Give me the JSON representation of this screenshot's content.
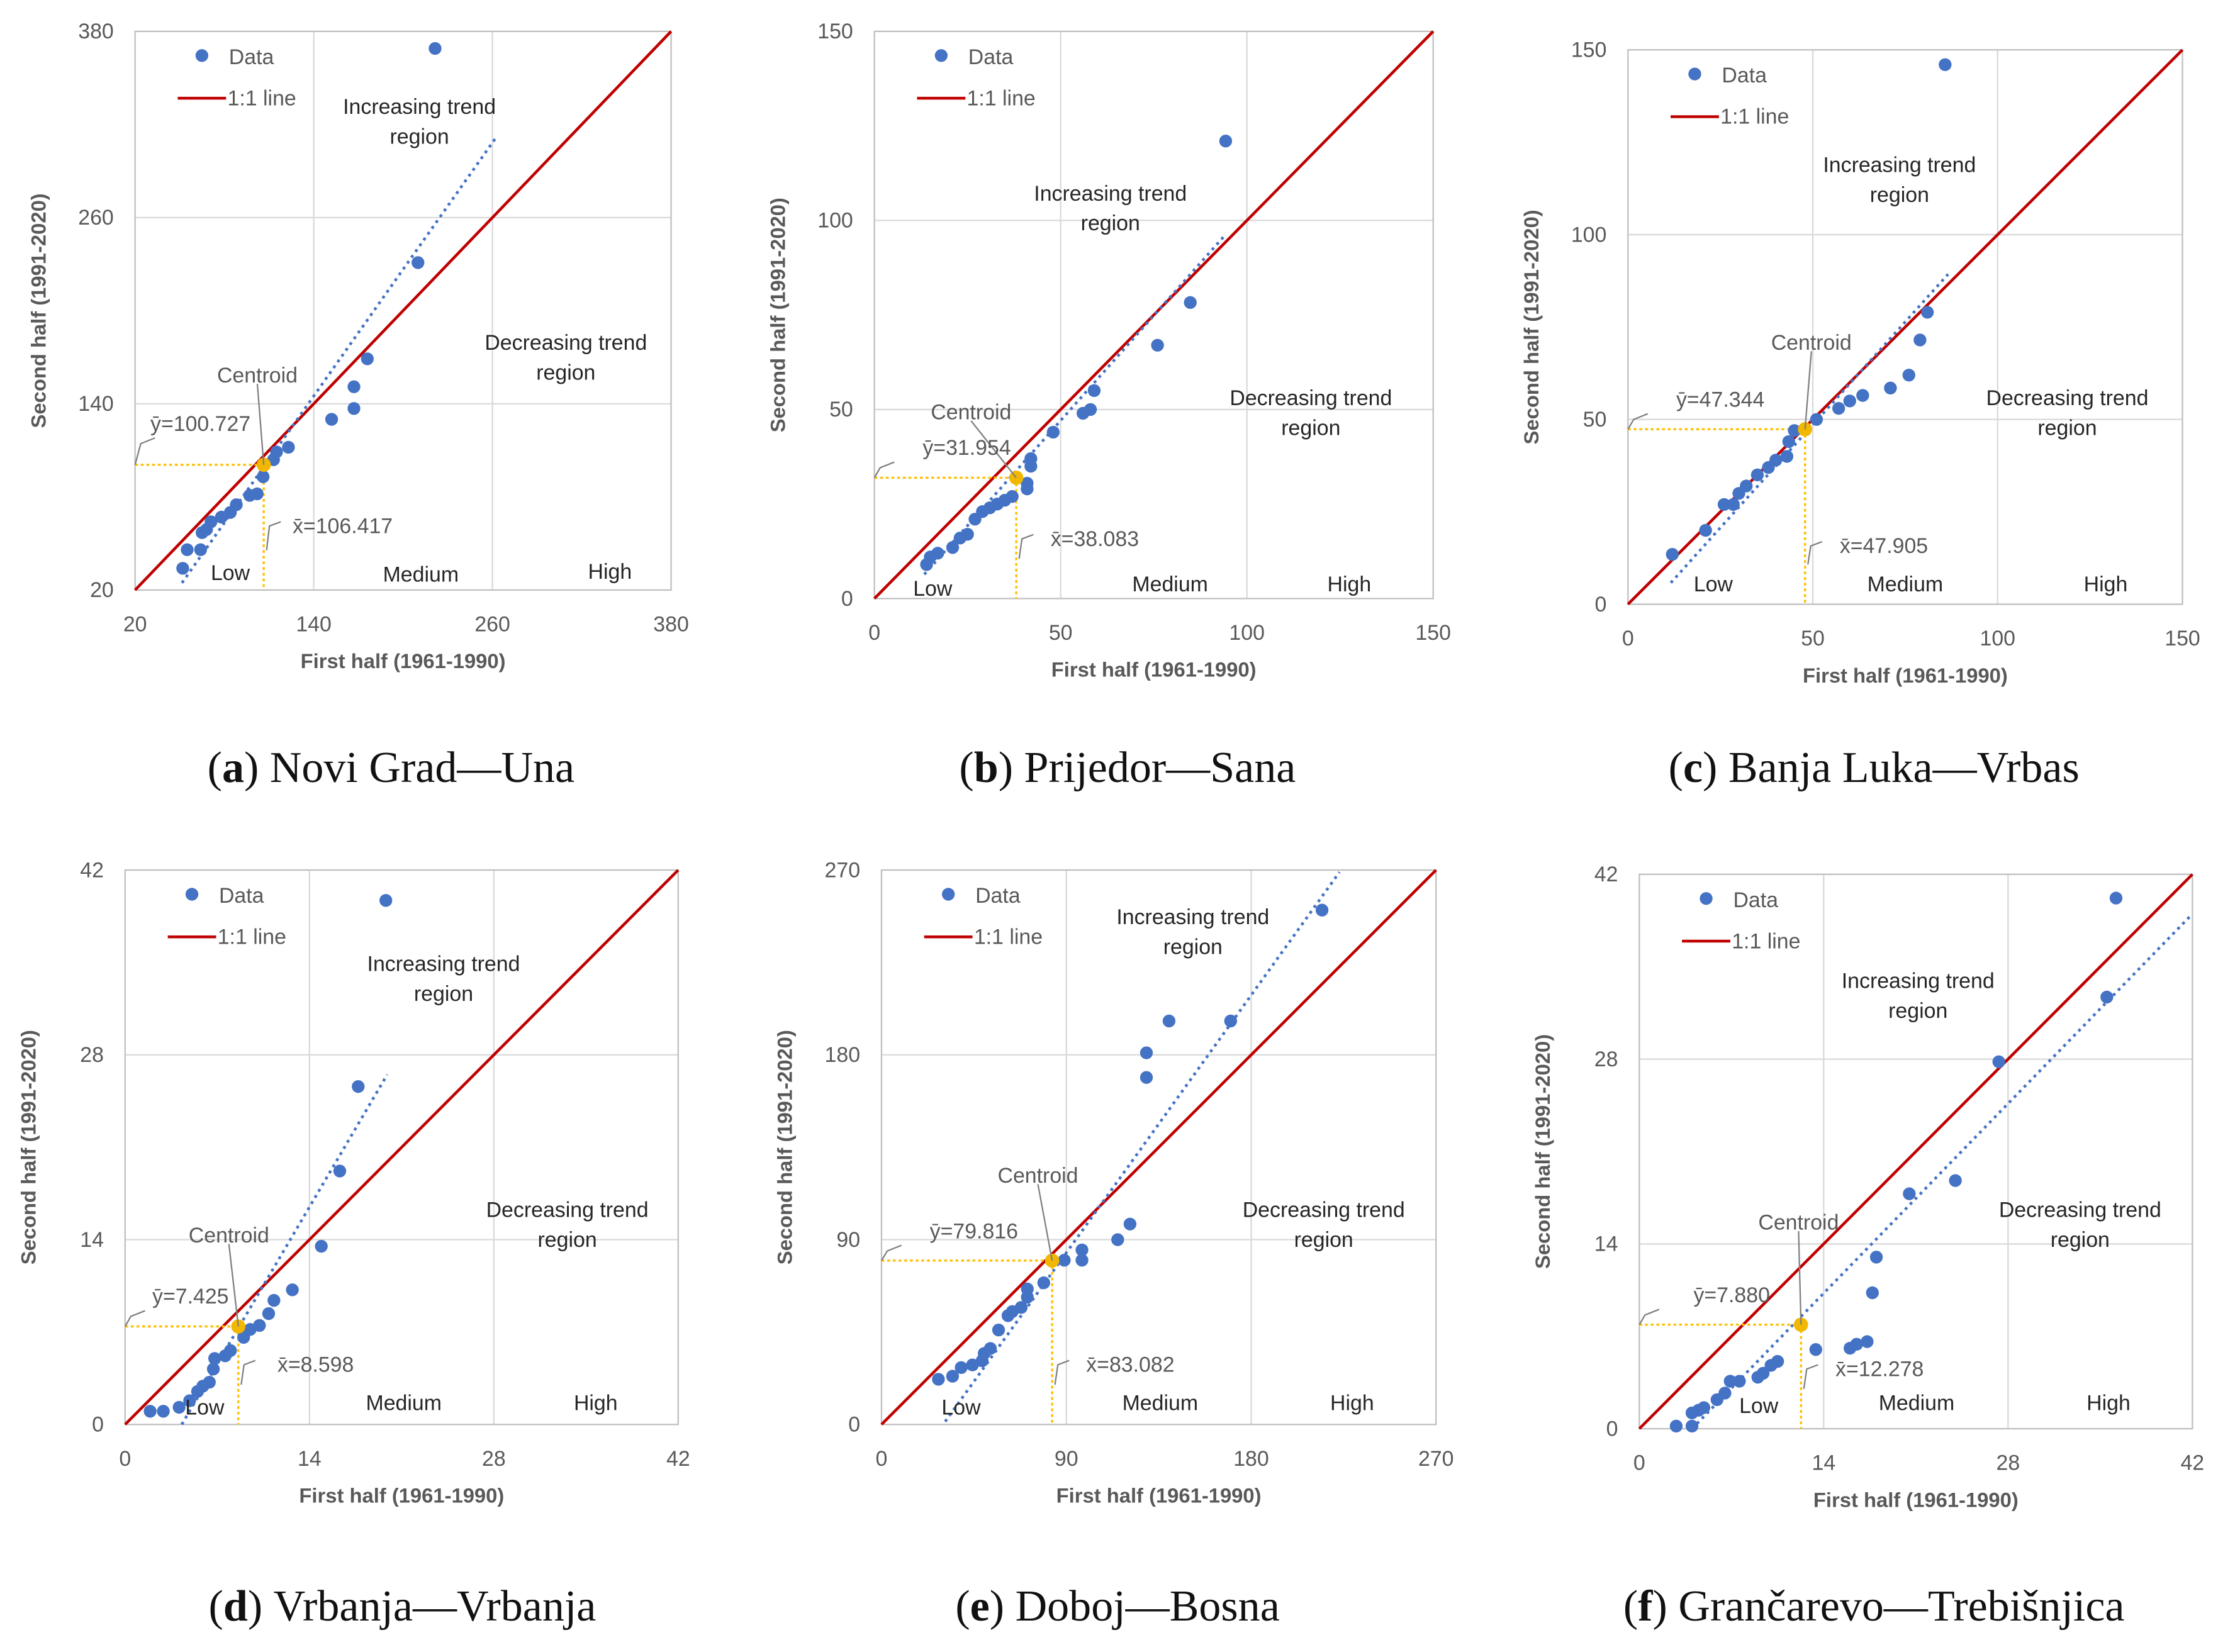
{
  "colors": {
    "points": "#4472C4",
    "one_to_one": "#C00000",
    "centroid": "#F2B700",
    "guides": "#FFC000",
    "trend": "#4472C4",
    "grid": "#D9D9D9"
  },
  "chart_data": [
    {
      "type": "scatter",
      "panel": "a",
      "title": "Novi Grad—Una",
      "xlabel": "First half (1961-1990)",
      "ylabel": "Second half (1991-2020)",
      "xlim": [
        20,
        380
      ],
      "ylim": [
        20,
        380
      ],
      "ticks": [
        20,
        140,
        260,
        380
      ],
      "legend": [
        "Data",
        "1:1 line"
      ],
      "legend_placement": "top-left",
      "grid": true,
      "region_labels": {
        "increasing": [
          "Increasing trend",
          "region"
        ],
        "decreasing": [
          "Decreasing trend",
          "region"
        ]
      },
      "class_labels": [
        "Low",
        "Medium",
        "High"
      ],
      "centroid_label": "Centroid",
      "centroid": {
        "x": 106.417,
        "y": 100.727
      },
      "ybar_label": "ȳ=100.727",
      "xbar_label": "x̄=106.417",
      "trendline": [
        [
          51.5,
          24.6
        ],
        [
          262,
          311
        ]
      ],
      "points": [
        [
          221.5,
          369
        ],
        [
          210,
          231
        ],
        [
          176,
          169
        ],
        [
          167,
          151
        ],
        [
          167,
          137
        ],
        [
          152,
          130
        ],
        [
          123,
          112
        ],
        [
          115,
          109
        ],
        [
          113,
          104
        ],
        [
          106,
          93
        ],
        [
          102,
          82
        ],
        [
          97,
          81
        ],
        [
          88,
          75
        ],
        [
          84,
          70
        ],
        [
          78,
          67
        ],
        [
          71,
          64
        ],
        [
          68,
          59
        ],
        [
          65,
          57
        ],
        [
          64,
          46
        ],
        [
          55,
          46
        ],
        [
          52,
          34
        ]
      ]
    },
    {
      "type": "scatter",
      "panel": "b",
      "title": "Prijedor—Sana",
      "xlabel": "First half (1961-1990)",
      "ylabel": "Second half (1991-2020)",
      "xlim": [
        0,
        150
      ],
      "ylim": [
        0,
        150
      ],
      "ticks": [
        0,
        50,
        100,
        150
      ],
      "legend": [
        "Data",
        "1:1 line"
      ],
      "legend_placement": "top-left",
      "grid": true,
      "region_labels": {
        "increasing": [
          "Increasing trend",
          "region"
        ],
        "decreasing": [
          "Decreasing trend",
          "region"
        ]
      },
      "class_labels": [
        "Low",
        "Medium",
        "High"
      ],
      "centroid_label": "Centroid",
      "centroid": {
        "x": 38.083,
        "y": 31.954
      },
      "ybar_label": "ȳ=31.954",
      "xbar_label": "x̄=38.083",
      "trendline": [
        [
          13.4,
          6.4
        ],
        [
          94.3,
          96.3
        ]
      ],
      "points": [
        [
          94.3,
          121
        ],
        [
          84.8,
          78.3
        ],
        [
          76,
          67
        ],
        [
          59,
          55
        ],
        [
          58,
          50
        ],
        [
          56,
          49
        ],
        [
          48,
          44
        ],
        [
          42,
          37
        ],
        [
          42,
          35
        ],
        [
          41,
          30.5
        ],
        [
          41,
          29
        ],
        [
          37,
          27
        ],
        [
          35,
          26
        ],
        [
          33,
          25
        ],
        [
          31,
          24
        ],
        [
          29,
          23
        ],
        [
          27,
          21
        ],
        [
          25,
          17
        ],
        [
          23,
          16
        ],
        [
          21,
          13.5
        ],
        [
          17,
          12
        ],
        [
          15,
          11
        ],
        [
          14,
          9
        ]
      ]
    },
    {
      "type": "scatter",
      "panel": "c",
      "title": "Banja Luka—Vrbas",
      "xlabel": "First half (1961-1990)",
      "ylabel": "Second half (1991-2020)",
      "xlim": [
        0,
        150
      ],
      "ylim": [
        0,
        150
      ],
      "ticks": [
        0,
        50,
        100,
        150
      ],
      "legend": [
        "Data",
        "1:1 line"
      ],
      "legend_placement": "top-left",
      "grid": true,
      "region_labels": {
        "increasing": [
          "Increasing trend",
          "region"
        ],
        "decreasing": [
          "Decreasing trend",
          "region"
        ]
      },
      "class_labels": [
        "Low",
        "Medium",
        "High"
      ],
      "centroid_label": "Centroid",
      "centroid": {
        "x": 47.905,
        "y": 47.344
      },
      "ybar_label": "ȳ=47.344",
      "xbar_label": "x̄=47.905",
      "trendline": [
        [
          11.6,
          5.8
        ],
        [
          86.6,
          89.3
        ]
      ],
      "points": [
        [
          85.8,
          146
        ],
        [
          81,
          79
        ],
        [
          79,
          71.5
        ],
        [
          76,
          62
        ],
        [
          71,
          58.5
        ],
        [
          63.5,
          56.5
        ],
        [
          60,
          55
        ],
        [
          57,
          53
        ],
        [
          51,
          50
        ],
        [
          45,
          47
        ],
        [
          43.5,
          44
        ],
        [
          43,
          40
        ],
        [
          40,
          39
        ],
        [
          38,
          37
        ],
        [
          35,
          35
        ],
        [
          32,
          32
        ],
        [
          30,
          30
        ],
        [
          28.5,
          27
        ],
        [
          26,
          27
        ],
        [
          21,
          20
        ],
        [
          12,
          13.5
        ]
      ]
    },
    {
      "type": "scatter",
      "panel": "d",
      "title": "Vrbanja—Vrbanja",
      "xlabel": "First half (1961-1990)",
      "ylabel": "Second half (1991-2020)",
      "xlim": [
        0,
        42
      ],
      "ylim": [
        0,
        42
      ],
      "ticks": [
        0,
        14,
        28,
        42
      ],
      "legend": [
        "Data",
        "1:1 line"
      ],
      "legend_placement": "top-left",
      "grid": true,
      "region_labels": {
        "increasing": [
          "Increasing trend",
          "region"
        ],
        "decreasing": [
          "Decreasing trend",
          "region"
        ]
      },
      "class_labels": [
        "Low",
        "Medium",
        "High"
      ],
      "centroid_label": "Centroid",
      "centroid": {
        "x": 8.598,
        "y": 7.425
      },
      "ybar_label": "ȳ=7.425",
      "xbar_label": "x̄=8.598",
      "trendline": [
        [
          4.3,
          0
        ],
        [
          19.9,
          26.5
        ]
      ],
      "points": [
        [
          19.8,
          39.7
        ],
        [
          17.7,
          25.6
        ],
        [
          16.3,
          19.2
        ],
        [
          14.9,
          13.5
        ],
        [
          12.7,
          10.2
        ],
        [
          11.3,
          9.4
        ],
        [
          10.9,
          8.4
        ],
        [
          10.2,
          7.5
        ],
        [
          9.5,
          7.2
        ],
        [
          9,
          6.6
        ],
        [
          8,
          5.6
        ],
        [
          7.6,
          5.2
        ],
        [
          6.8,
          5
        ],
        [
          6.7,
          4.2
        ],
        [
          6.4,
          3.2
        ],
        [
          5.9,
          2.9
        ],
        [
          5.5,
          2.5
        ],
        [
          4.9,
          1.8
        ],
        [
          4.1,
          1.3
        ],
        [
          2.9,
          1
        ],
        [
          1.9,
          1
        ]
      ]
    },
    {
      "type": "scatter",
      "panel": "e",
      "title": "Doboj—Bosna",
      "xlabel": "First half (1961-1990)",
      "ylabel": "Second half (1991-2020)",
      "xlim": [
        0,
        270
      ],
      "ylim": [
        0,
        270
      ],
      "ticks": [
        0,
        90,
        180,
        270
      ],
      "legend": [
        "Data",
        "1:1 line"
      ],
      "legend_placement": "top-left",
      "grid": true,
      "region_labels": {
        "increasing": [
          "Increasing trend",
          "region"
        ],
        "decreasing": [
          "Decreasing trend",
          "region"
        ]
      },
      "class_labels": [
        "Low",
        "Medium",
        "High"
      ],
      "centroid_label": "Centroid",
      "centroid": {
        "x": 83.082,
        "y": 79.816
      },
      "ybar_label": "ȳ=79.816",
      "xbar_label": "x̄=83.082",
      "trendline": [
        [
          31,
          1.4
        ],
        [
          223,
          269
        ]
      ],
      "points": [
        [
          214.5,
          250.5
        ],
        [
          170,
          196.5
        ],
        [
          140,
          196.5
        ],
        [
          129,
          181
        ],
        [
          129,
          169
        ],
        [
          121,
          97.6
        ],
        [
          115,
          90
        ],
        [
          97.6,
          85
        ],
        [
          97.6,
          80
        ],
        [
          89,
          80
        ],
        [
          79,
          69
        ],
        [
          71,
          66
        ],
        [
          71,
          62
        ],
        [
          68,
          57
        ],
        [
          63.7,
          55
        ],
        [
          61.6,
          53
        ],
        [
          57,
          46
        ],
        [
          53,
          37
        ],
        [
          50,
          34.6
        ],
        [
          49,
          31
        ],
        [
          44.3,
          29
        ],
        [
          38.8,
          27.7
        ],
        [
          34.6,
          23.5
        ],
        [
          27.7,
          22
        ]
      ]
    },
    {
      "type": "scatter",
      "panel": "f",
      "title": "Grančarevo—Trebišnjica",
      "xlabel": "First half (1961-1990)",
      "ylabel": "Second half (1991-2020)",
      "xlim": [
        0,
        42
      ],
      "ylim": [
        0,
        42
      ],
      "ticks": [
        0,
        14,
        28,
        42
      ],
      "legend": [
        "Data",
        "1:1 line"
      ],
      "legend_placement": "top-left",
      "grid": true,
      "region_labels": {
        "increasing": [
          "Increasing trend",
          "region"
        ],
        "decreasing": [
          "Decreasing trend",
          "region"
        ]
      },
      "class_labels": [
        "Low",
        "Medium",
        "High"
      ],
      "centroid_label": "Centroid",
      "centroid": {
        "x": 12.278,
        "y": 7.88
      },
      "ybar_label": "ȳ=7.880",
      "xbar_label": "x̄=12.278",
      "trendline": [
        [
          4,
          0
        ],
        [
          42,
          39
        ]
      ],
      "points": [
        [
          36.2,
          40.2
        ],
        [
          35.5,
          32.7
        ],
        [
          27.3,
          27.8
        ],
        [
          24,
          18.8
        ],
        [
          20.5,
          17.8
        ],
        [
          18,
          13
        ],
        [
          17.7,
          10.3
        ],
        [
          17.3,
          6.6
        ],
        [
          16.5,
          6.4
        ],
        [
          16,
          6.1
        ],
        [
          13.4,
          6
        ],
        [
          10.5,
          5.1
        ],
        [
          10,
          4.8
        ],
        [
          9.4,
          4.2
        ],
        [
          9,
          3.9
        ],
        [
          7.6,
          3.6
        ],
        [
          6.9,
          3.6
        ],
        [
          6.5,
          2.7
        ],
        [
          5.9,
          2.2
        ],
        [
          4.9,
          1.6
        ],
        [
          4.5,
          1.4
        ],
        [
          4,
          1.2
        ],
        [
          4,
          0.2
        ],
        [
          2.8,
          0.2
        ]
      ]
    }
  ]
}
